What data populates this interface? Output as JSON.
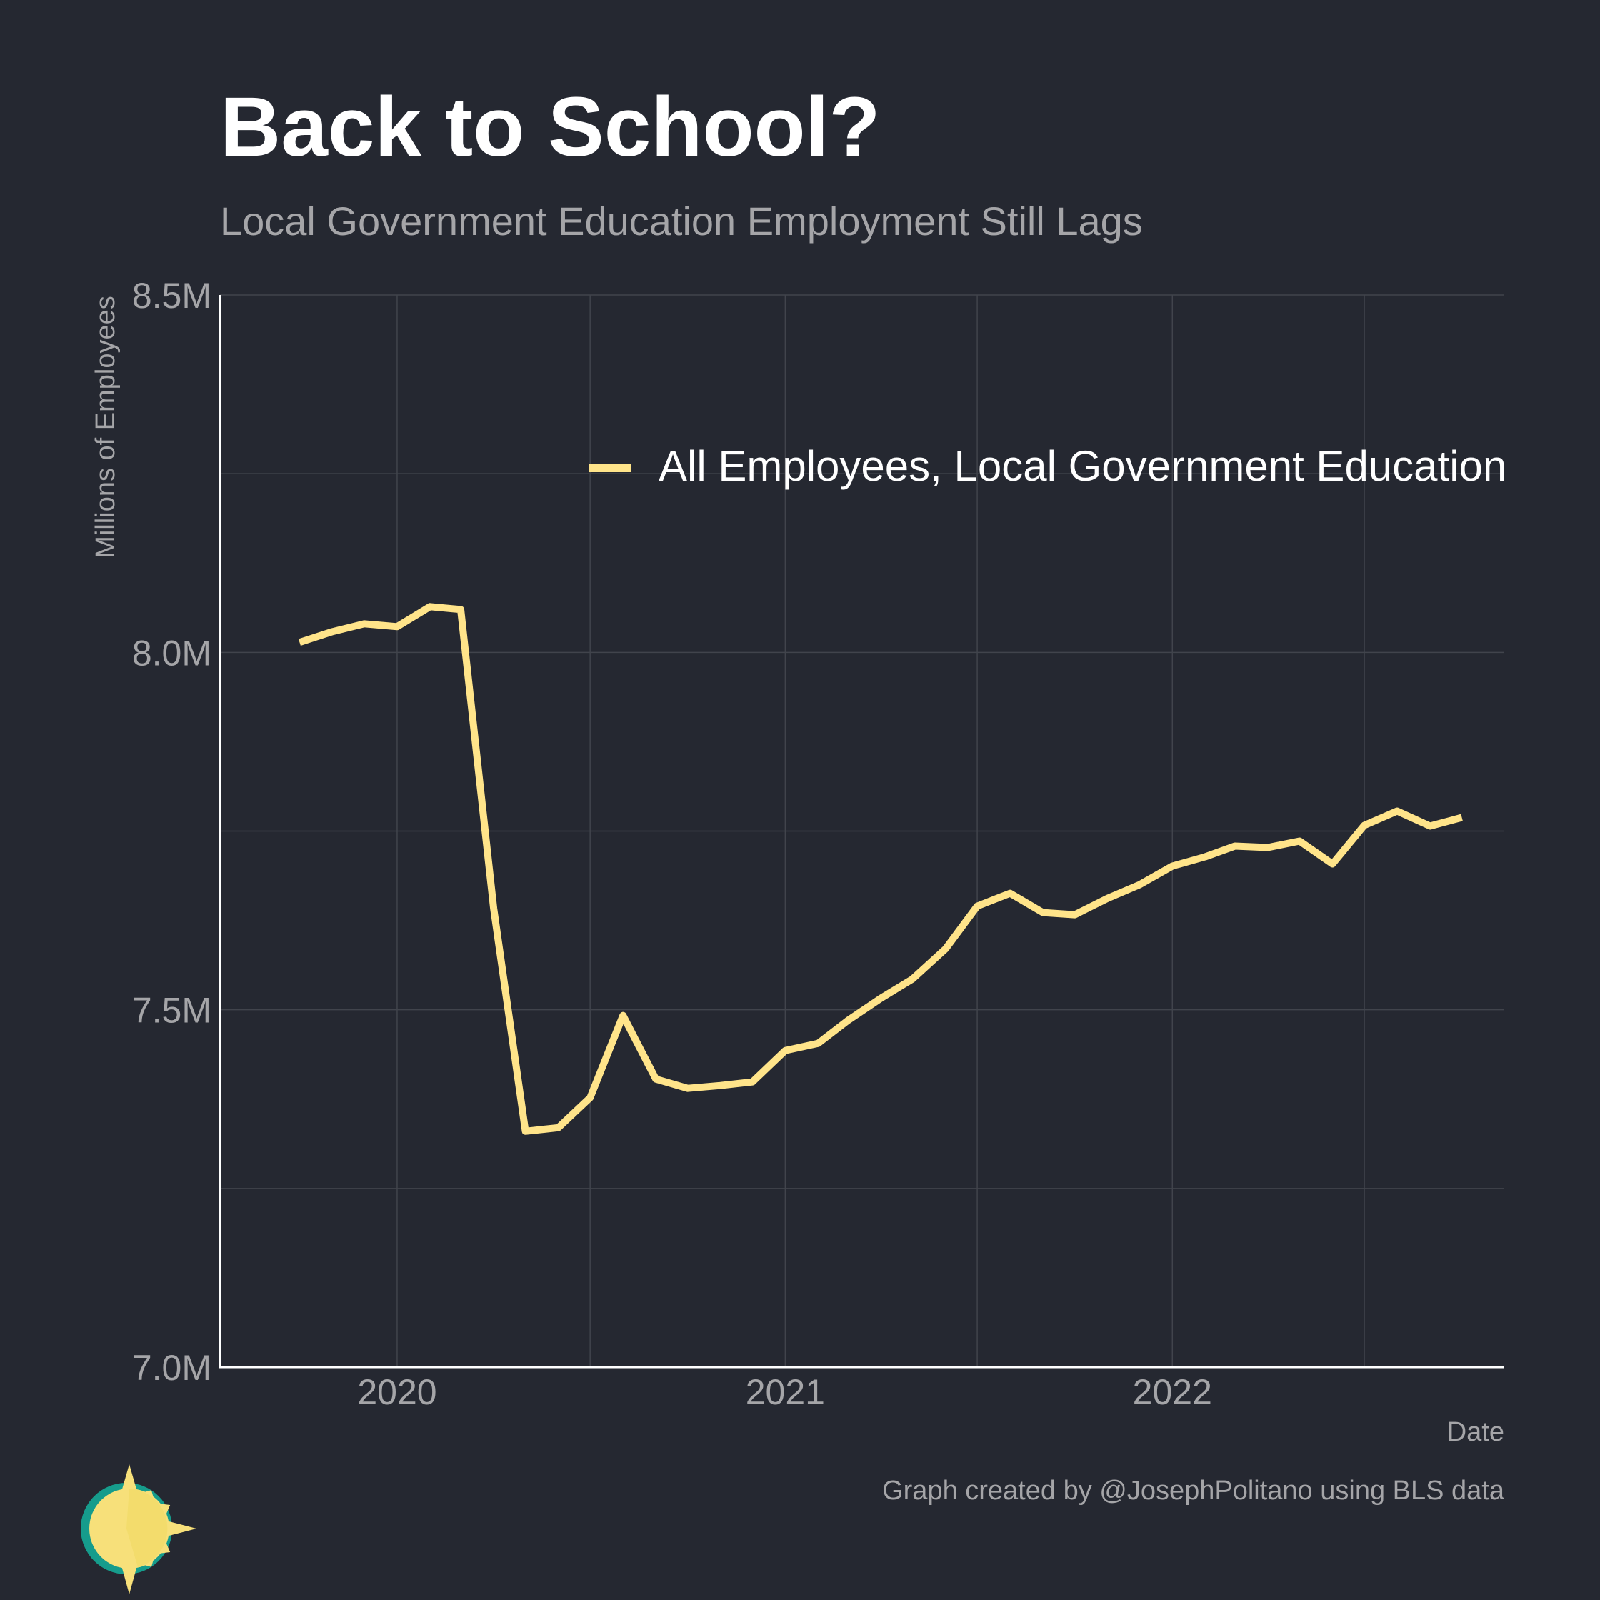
{
  "colors": {
    "background": "#252831",
    "line": "#ffe48a",
    "grid": "#41444c",
    "axis": "#ffffff",
    "muted_text": "#a5a5a8",
    "logo_sun": "#f7e07a",
    "logo_ring": "#169c8c"
  },
  "chart_data": {
    "type": "line",
    "title": "Back to School?",
    "subtitle": "Local Government Education Employment Still Lags",
    "xlabel": "Date",
    "ylabel": "Millions of Employees",
    "caption": "Graph created by @JosephPolitano using BLS data",
    "ylim": [
      7.0,
      8.5
    ],
    "xlim": [
      "2019-07-18",
      "2022-11-10"
    ],
    "y_ticks": [
      {
        "value": 7.0,
        "label": "7.0M"
      },
      {
        "value": 7.5,
        "label": "7.5M"
      },
      {
        "value": 8.0,
        "label": "8.0M"
      },
      {
        "value": 8.5,
        "label": "8.5M"
      }
    ],
    "x_ticks": [
      {
        "value": "2020-01-01",
        "label": "2020"
      },
      {
        "value": "2021-01-01",
        "label": "2021"
      },
      {
        "value": "2022-01-01",
        "label": "2022"
      }
    ],
    "grid": true,
    "legend_position": "top-right",
    "series": [
      {
        "name": "All Employees, Local Government Education",
        "points": [
          {
            "x": "2019-10-01",
            "y": 8.014
          },
          {
            "x": "2019-11-01",
            "y": 8.029
          },
          {
            "x": "2019-12-01",
            "y": 8.04
          },
          {
            "x": "2020-01-01",
            "y": 8.036
          },
          {
            "x": "2020-02-01",
            "y": 8.064
          },
          {
            "x": "2020-03-01",
            "y": 8.06
          },
          {
            "x": "2020-04-01",
            "y": 7.642
          },
          {
            "x": "2020-05-01",
            "y": 7.33
          },
          {
            "x": "2020-06-01",
            "y": 7.335
          },
          {
            "x": "2020-07-01",
            "y": 7.377
          },
          {
            "x": "2020-08-01",
            "y": 7.492
          },
          {
            "x": "2020-09-01",
            "y": 7.403
          },
          {
            "x": "2020-10-01",
            "y": 7.39
          },
          {
            "x": "2020-11-01",
            "y": 7.394
          },
          {
            "x": "2020-12-01",
            "y": 7.399
          },
          {
            "x": "2021-01-01",
            "y": 7.443
          },
          {
            "x": "2021-02-01",
            "y": 7.453
          },
          {
            "x": "2021-03-01",
            "y": 7.485
          },
          {
            "x": "2021-04-01",
            "y": 7.516
          },
          {
            "x": "2021-05-01",
            "y": 7.543
          },
          {
            "x": "2021-06-01",
            "y": 7.585
          },
          {
            "x": "2021-07-01",
            "y": 7.645
          },
          {
            "x": "2021-08-01",
            "y": 7.663
          },
          {
            "x": "2021-09-01",
            "y": 7.636
          },
          {
            "x": "2021-10-01",
            "y": 7.633
          },
          {
            "x": "2021-11-01",
            "y": 7.656
          },
          {
            "x": "2021-12-01",
            "y": 7.675
          },
          {
            "x": "2022-01-01",
            "y": 7.701
          },
          {
            "x": "2022-02-01",
            "y": 7.714
          },
          {
            "x": "2022-03-01",
            "y": 7.729
          },
          {
            "x": "2022-04-01",
            "y": 7.727
          },
          {
            "x": "2022-05-01",
            "y": 7.736
          },
          {
            "x": "2022-06-01",
            "y": 7.704
          },
          {
            "x": "2022-07-01",
            "y": 7.758
          },
          {
            "x": "2022-08-01",
            "y": 7.778
          },
          {
            "x": "2022-09-01",
            "y": 7.757
          },
          {
            "x": "2022-10-01",
            "y": 7.769
          }
        ]
      }
    ]
  }
}
